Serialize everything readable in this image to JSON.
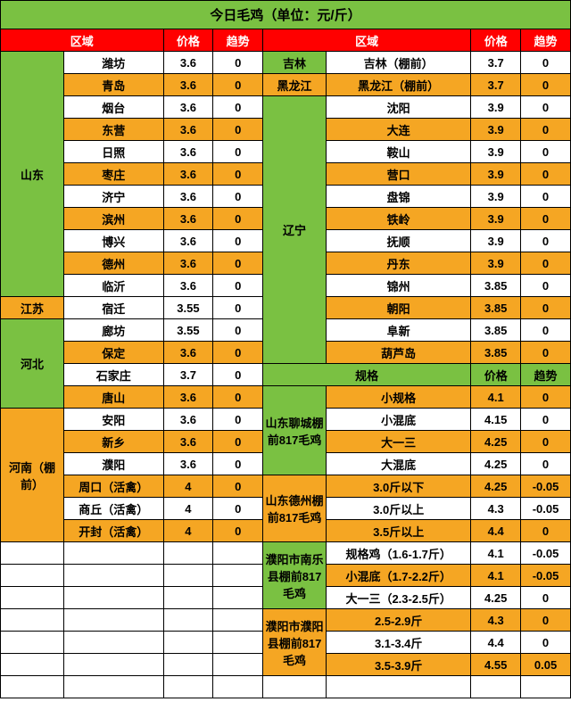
{
  "title": "今日毛鸡（单位：元/斤）",
  "headers": {
    "region": "区域",
    "price": "价格",
    "trend": "趋势",
    "spec": "规格"
  },
  "colors": {
    "green": "#7ac142",
    "orange": "#f5a623",
    "red": "#ff0000",
    "white": "#ffffff",
    "border": "#000000"
  },
  "left": {
    "shandong": {
      "name": "山东",
      "rows": [
        {
          "city": "潍坊",
          "p": "3.6",
          "t": "0",
          "c": "wht"
        },
        {
          "city": "青岛",
          "p": "3.6",
          "t": "0",
          "c": "org"
        },
        {
          "city": "烟台",
          "p": "3.6",
          "t": "0",
          "c": "wht"
        },
        {
          "city": "东营",
          "p": "3.6",
          "t": "0",
          "c": "org"
        },
        {
          "city": "日照",
          "p": "3.6",
          "t": "0",
          "c": "wht"
        },
        {
          "city": "枣庄",
          "p": "3.6",
          "t": "0",
          "c": "org"
        },
        {
          "city": "济宁",
          "p": "3.6",
          "t": "0",
          "c": "wht"
        },
        {
          "city": "滨州",
          "p": "3.6",
          "t": "0",
          "c": "org"
        },
        {
          "city": "博兴",
          "p": "3.6",
          "t": "0",
          "c": "wht"
        },
        {
          "city": "德州",
          "p": "3.6",
          "t": "0",
          "c": "org"
        },
        {
          "city": "临沂",
          "p": "3.6",
          "t": "0",
          "c": "wht"
        }
      ]
    },
    "jiangsu": {
      "name": "江苏",
      "rows": [
        {
          "city": "宿迁",
          "p": "3.55",
          "t": "0",
          "c": "wht"
        }
      ]
    },
    "hebei": {
      "name": "河北",
      "rows": [
        {
          "city": "廊坊",
          "p": "3.55",
          "t": "0",
          "c": "wht"
        },
        {
          "city": "保定",
          "p": "3.6",
          "t": "0",
          "c": "org"
        },
        {
          "city": "石家庄",
          "p": "3.7",
          "t": "0",
          "c": "wht"
        },
        {
          "city": "唐山",
          "p": "3.6",
          "t": "0",
          "c": "org"
        }
      ]
    },
    "henan": {
      "name": "河南（棚前）",
      "rows": [
        {
          "city": "安阳",
          "p": "3.6",
          "t": "0",
          "c": "wht"
        },
        {
          "city": "新乡",
          "p": "3.6",
          "t": "0",
          "c": "org"
        },
        {
          "city": "濮阳",
          "p": "3.6",
          "t": "0",
          "c": "wht"
        },
        {
          "city": "周口（活禽）",
          "p": "4",
          "t": "0",
          "c": "org"
        },
        {
          "city": "商丘（活禽）",
          "p": "4",
          "t": "0",
          "c": "wht"
        },
        {
          "city": "开封（活禽）",
          "p": "4",
          "t": "0",
          "c": "org"
        }
      ]
    },
    "blank_rows": 7
  },
  "right": {
    "jilin": {
      "name": "吉林",
      "rows": [
        {
          "city": "吉林（棚前）",
          "p": "3.7",
          "t": "0",
          "c": "wht"
        }
      ]
    },
    "heilongjiang": {
      "name": "黑龙江",
      "rows": [
        {
          "city": "黑龙江（棚前）",
          "p": "3.7",
          "t": "0",
          "c": "org"
        }
      ]
    },
    "liaoning": {
      "name": "辽宁",
      "rows": [
        {
          "city": "沈阳",
          "p": "3.9",
          "t": "0",
          "c": "wht"
        },
        {
          "city": "大连",
          "p": "3.9",
          "t": "0",
          "c": "org"
        },
        {
          "city": "鞍山",
          "p": "3.9",
          "t": "0",
          "c": "wht"
        },
        {
          "city": "营口",
          "p": "3.9",
          "t": "0",
          "c": "org"
        },
        {
          "city": "盘锦",
          "p": "3.9",
          "t": "0",
          "c": "wht"
        },
        {
          "city": "铁岭",
          "p": "3.9",
          "t": "0",
          "c": "org"
        },
        {
          "city": "抚顺",
          "p": "3.9",
          "t": "0",
          "c": "wht"
        },
        {
          "city": "丹东",
          "p": "3.9",
          "t": "0",
          "c": "org"
        },
        {
          "city": "锦州",
          "p": "3.85",
          "t": "0",
          "c": "wht"
        },
        {
          "city": "朝阳",
          "p": "3.85",
          "t": "0",
          "c": "org"
        },
        {
          "city": "阜新",
          "p": "3.85",
          "t": "0",
          "c": "wht"
        },
        {
          "city": "葫芦岛",
          "p": "3.85",
          "t": "0",
          "c": "org"
        }
      ]
    },
    "subheader": {
      "spec": "规格",
      "price": "价格",
      "trend": "趋势"
    },
    "liaocheng": {
      "name": "山东聊城棚前817毛鸡",
      "rows": [
        {
          "s": "小规格",
          "p": "4.1",
          "t": "0",
          "c": "org"
        },
        {
          "s": "小混底",
          "p": "4.15",
          "t": "0",
          "c": "wht"
        },
        {
          "s": "大一三",
          "p": "4.25",
          "t": "0",
          "c": "org"
        },
        {
          "s": "大混底",
          "p": "4.25",
          "t": "0",
          "c": "wht"
        }
      ]
    },
    "dezhou": {
      "name": "山东德州棚前817毛鸡",
      "rows": [
        {
          "s": "3.0斤以下",
          "p": "4.25",
          "t": "-0.05",
          "c": "org"
        },
        {
          "s": "3.0斤以上",
          "p": "4.3",
          "t": "-0.05",
          "c": "wht"
        },
        {
          "s": "3.5斤以上",
          "p": "4.4",
          "t": "0",
          "c": "org"
        }
      ]
    },
    "nanle": {
      "name": "濮阳市南乐县棚前817毛鸡",
      "rows": [
        {
          "s": "规格鸡（1.6-1.7斤）",
          "p": "4.1",
          "t": "-0.05",
          "c": "wht"
        },
        {
          "s": "小混底（1.7-2.2斤）",
          "p": "4.1",
          "t": "-0.05",
          "c": "org"
        },
        {
          "s": "大一三（2.3-2.5斤）",
          "p": "4.25",
          "t": "0",
          "c": "wht"
        }
      ]
    },
    "puyang": {
      "name": "濮阳市濮阳县棚前817毛鸡",
      "rows": [
        {
          "s": "2.5-2.9斤",
          "p": "4.3",
          "t": "0",
          "c": "org"
        },
        {
          "s": "3.1-3.4斤",
          "p": "4.4",
          "t": "0",
          "c": "wht"
        },
        {
          "s": "3.5-3.9斤",
          "p": "4.55",
          "t": "0.05",
          "c": "org"
        }
      ]
    }
  }
}
